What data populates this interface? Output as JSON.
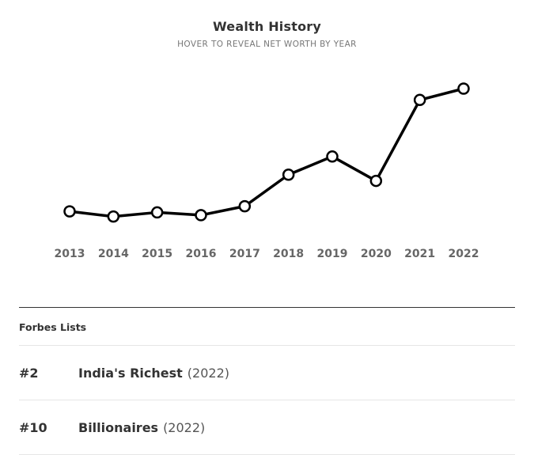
{
  "chart_data": {
    "type": "line",
    "title": "Wealth History",
    "subtitle": "HOVER TO REVEAL NET WORTH BY YEAR",
    "xlabel": "",
    "ylabel": "",
    "categories": [
      "2013",
      "2014",
      "2015",
      "2016",
      "2017",
      "2018",
      "2019",
      "2020",
      "2021",
      "2022"
    ],
    "values": [
      18.2,
      16.7,
      17.9,
      17.1,
      19.7,
      28.9,
      34.2,
      27.1,
      50.7,
      54.0
    ],
    "ylim": [
      0,
      66
    ],
    "grid": false,
    "legend": "none",
    "line_color": "#000000",
    "marker_fill": "#ffffff"
  },
  "lists": {
    "heading": "Forbes Lists",
    "items": [
      {
        "rank": "#2",
        "name": "India's Richest",
        "year": "(2022)"
      },
      {
        "rank": "#10",
        "name": "Billionaires",
        "year": "(2022)"
      }
    ]
  }
}
